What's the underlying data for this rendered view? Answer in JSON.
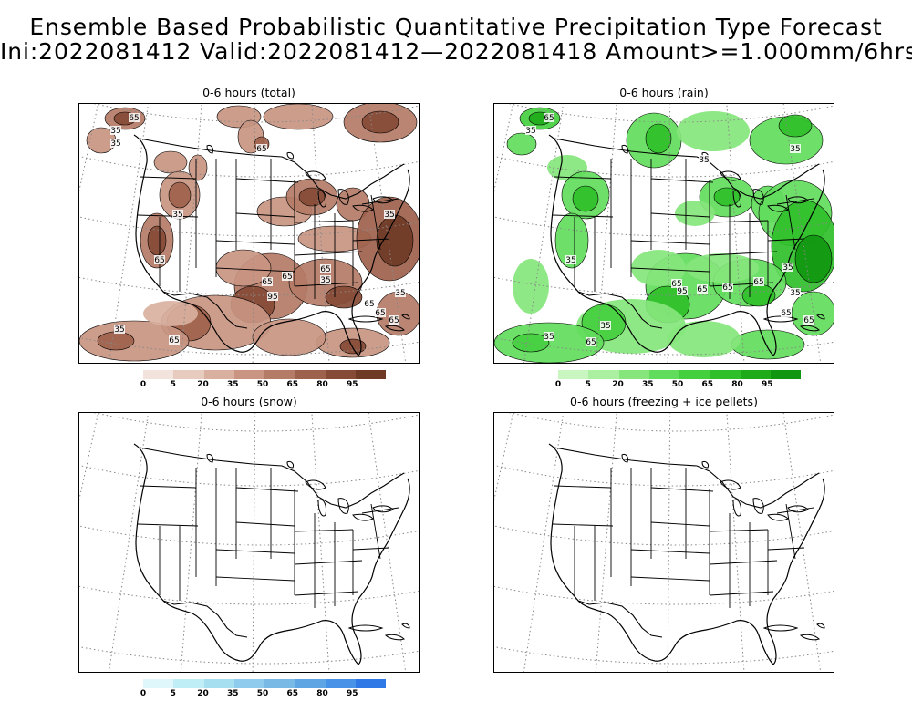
{
  "header": {
    "title_line1": "Ensemble Based Probabilistic Quantitative Precipitation Type Forecast",
    "title_line2": "Ini:2022081412 Valid:2022081412—2022081418 Amount>=1.000mm/6hrs"
  },
  "panels": [
    {
      "title": "0-6 hours (total)"
    },
    {
      "title": "0-6 hours (rain)"
    },
    {
      "title": "0-6 hours (snow)"
    },
    {
      "title": "0-6 hours (freezing + ice pellets)"
    }
  ],
  "legend_ticks": [
    "0",
    "5",
    "20",
    "35",
    "50",
    "65",
    "80",
    "95"
  ],
  "colors": {
    "total": [
      "#f3e3dd",
      "#e8cbbf",
      "#d9b09f",
      "#c99582",
      "#b47b66",
      "#9e624c",
      "#864b36",
      "#6e3a25"
    ],
    "rain": [
      "#c8f5c0",
      "#aaf0a0",
      "#86e67c",
      "#62dc5c",
      "#44cf3f",
      "#2fbf2a",
      "#1faa19",
      "#109610"
    ],
    "snow": [
      "#dff7fb",
      "#bfeef6",
      "#a6dff0",
      "#8ecbec",
      "#78b9e6",
      "#5ea5e4",
      "#4892e8",
      "#2f79e6"
    ]
  },
  "contour_labels": [
    "35",
    "65",
    "95"
  ]
}
